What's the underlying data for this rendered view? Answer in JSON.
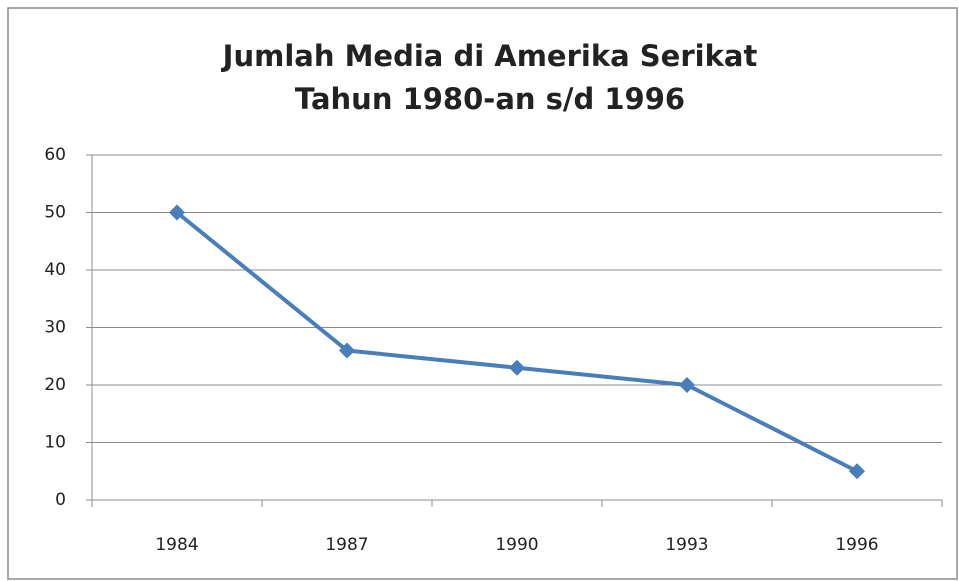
{
  "chart_data": {
    "type": "line",
    "title": [
      "Jumlah Media di Amerika Serikat",
      "Tahun 1980-an s/d 1996"
    ],
    "categories": [
      "1984",
      "1987",
      "1990",
      "1993",
      "1996"
    ],
    "values": [
      50,
      26,
      23,
      20,
      5
    ],
    "color": "#4a7ebb",
    "ylim": [
      0,
      60
    ],
    "yticks": [
      0,
      10,
      20,
      30,
      40,
      50,
      60
    ],
    "grid": true
  }
}
